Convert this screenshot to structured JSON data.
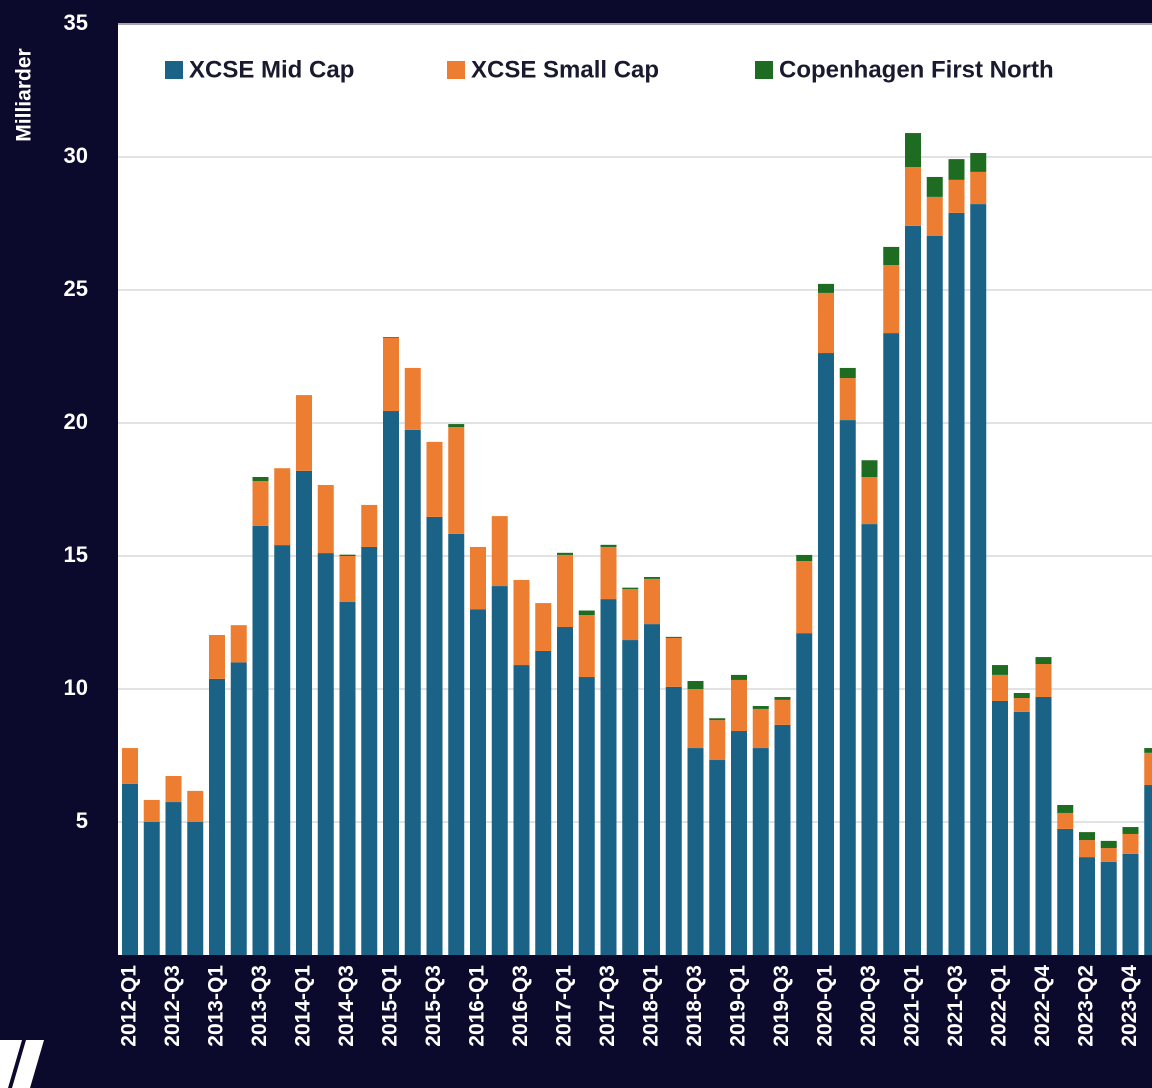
{
  "chart_data": {
    "type": "stacked_bar",
    "y_label": "Milliarder",
    "categories": [
      "2012-Q1",
      null,
      "2012-Q3",
      null,
      "2013-Q1",
      null,
      "2013-Q3",
      null,
      "2014-Q1",
      null,
      "2014-Q3",
      null,
      "2015-Q1",
      null,
      "2015-Q3",
      null,
      "2016-Q1",
      null,
      "2016-Q3",
      null,
      "2017-Q1",
      null,
      "2017-Q3",
      null,
      "2018-Q1",
      null,
      "2018-Q3",
      null,
      "2019-Q1",
      null,
      "2019-Q3",
      null,
      "2020-Q1",
      null,
      "2020-Q3",
      null,
      "2021-Q1",
      null,
      "2021-Q3",
      null,
      "2022-Q1",
      null,
      "2022-Q4",
      null,
      "2023-Q2",
      null,
      "2023-Q4",
      null
    ],
    "series": [
      {
        "name": "XCSE Mid Cap",
        "color": "#1a6286",
        "values": [
          6.43,
          5.0,
          5.75,
          5.0,
          10.38,
          11.0,
          16.13,
          15.41,
          18.2,
          15.11,
          13.27,
          15.34,
          20.45,
          19.74,
          16.47,
          15.83,
          13.0,
          13.87,
          10.9,
          11.43,
          12.33,
          10.45,
          13.38,
          11.84,
          12.44,
          10.08,
          7.78,
          7.33,
          8.42,
          7.78,
          8.65,
          12.1,
          22.63,
          20.11,
          16.2,
          23.38,
          27.41,
          27.03,
          27.9,
          28.23,
          9.55,
          9.14,
          9.7,
          4.74,
          3.68,
          3.5,
          3.8,
          6.39
        ]
      },
      {
        "name": "XCSE Small Cap",
        "color": "#ed7d31",
        "values": [
          1.35,
          0.83,
          0.98,
          1.17,
          1.65,
          1.4,
          1.69,
          2.89,
          2.85,
          2.56,
          1.73,
          1.58,
          2.75,
          2.33,
          2.82,
          4.02,
          2.34,
          2.63,
          3.2,
          1.8,
          2.71,
          2.33,
          1.96,
          1.92,
          1.7,
          1.84,
          2.22,
          1.5,
          1.92,
          1.47,
          0.94,
          2.71,
          2.26,
          1.58,
          1.77,
          2.56,
          2.21,
          1.47,
          1.24,
          1.21,
          0.98,
          0.52,
          1.24,
          0.6,
          0.64,
          0.52,
          0.75,
          1.21
        ]
      },
      {
        "name": "Copenhagen First North",
        "color": "#1e6b22",
        "values": [
          0,
          0,
          0,
          0,
          0,
          0,
          0.15,
          0,
          0,
          0,
          0.05,
          0,
          0.03,
          0,
          0,
          0.11,
          0,
          0,
          0,
          0,
          0.08,
          0.17,
          0.08,
          0.05,
          0.07,
          0.04,
          0.3,
          0.07,
          0.19,
          0.11,
          0.11,
          0.23,
          0.34,
          0.38,
          0.63,
          0.68,
          1.28,
          0.75,
          0.78,
          0.71,
          0.37,
          0.19,
          0.26,
          0.3,
          0.3,
          0.27,
          0.26,
          0.18
        ]
      }
    ],
    "ylim": [
      0,
      35
    ],
    "yticks": [
      5,
      10,
      15,
      20,
      25,
      30,
      35
    ],
    "grid": true,
    "legend": "top"
  }
}
